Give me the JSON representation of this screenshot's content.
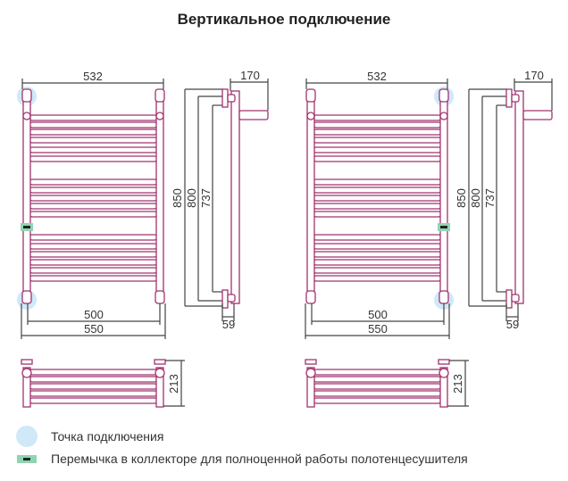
{
  "title": "Вертикальное подключение",
  "diagrams": [
    {
      "side": "left",
      "dims": {
        "top_width": "532",
        "depth": "170",
        "h_total": "850",
        "h_axis": "800",
        "h_inner": "737",
        "axis_width": "500",
        "total_width": "550",
        "offset": "59",
        "top_depth": "213"
      }
    },
    {
      "side": "right",
      "dims": {
        "top_width": "532",
        "depth": "170",
        "h_total": "850",
        "h_axis": "800",
        "h_inner": "737",
        "axis_width": "500",
        "total_width": "550",
        "offset": "59",
        "top_depth": "213"
      }
    }
  ],
  "legend": [
    {
      "icon": "connection-point-circle",
      "label": "Точка подключения"
    },
    {
      "icon": "collector-jumper-mark",
      "label": "Перемычка в коллекторе для полноценной работы полотенцесушителя"
    }
  ],
  "colors": {
    "tube": "#a1336f",
    "dimension": "#444444",
    "connection": "#cfe9f8",
    "jumper": "#8fd4b2"
  }
}
